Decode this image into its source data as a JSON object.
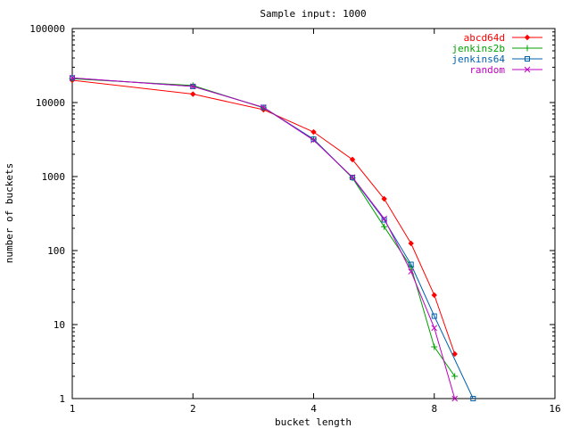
{
  "chart_data": {
    "type": "line",
    "title": "Sample input: 1000",
    "xlabel": "bucket length",
    "ylabel": "number of buckets",
    "x_scale": "log2",
    "y_scale": "log10",
    "xlim": [
      1,
      16
    ],
    "ylim": [
      1,
      100000
    ],
    "x_ticks": [
      1,
      2,
      4,
      8,
      16
    ],
    "y_ticks": [
      1,
      10,
      100,
      1000,
      10000,
      100000
    ],
    "x_tick_labels": [
      "1",
      "2",
      "4",
      "8",
      "16"
    ],
    "y_tick_labels": [
      "1",
      "10",
      "100",
      "1000",
      "10000",
      "100000"
    ],
    "grid": false,
    "legend_position": "top-right",
    "series": [
      {
        "name": "abcd64d",
        "color": "#ff0000",
        "marker": "diamond",
        "x": [
          1,
          2,
          3,
          4,
          5,
          6,
          7,
          8,
          9
        ],
        "y": [
          20000,
          13000,
          8000,
          4000,
          1700,
          500,
          125,
          25,
          4
        ]
      },
      {
        "name": "jenkins2b",
        "color": "#00a000",
        "marker": "plus",
        "x": [
          1,
          2,
          3,
          4,
          5,
          6,
          7,
          8,
          9
        ],
        "y": [
          21000,
          17000,
          8500,
          3200,
          960,
          210,
          60,
          5,
          2
        ]
      },
      {
        "name": "jenkins64",
        "color": "#0060ad",
        "marker": "square",
        "x": [
          1,
          2,
          3,
          4,
          5,
          6,
          7,
          8,
          10
        ],
        "y": [
          21500,
          16500,
          8600,
          3200,
          970,
          260,
          65,
          13,
          1
        ]
      },
      {
        "name": "random",
        "color": "#c000c0",
        "marker": "x",
        "x": [
          1,
          2,
          3,
          4,
          5,
          6,
          7,
          8,
          9
        ],
        "y": [
          21500,
          16500,
          8600,
          3100,
          980,
          270,
          52,
          9,
          1
        ]
      }
    ]
  }
}
